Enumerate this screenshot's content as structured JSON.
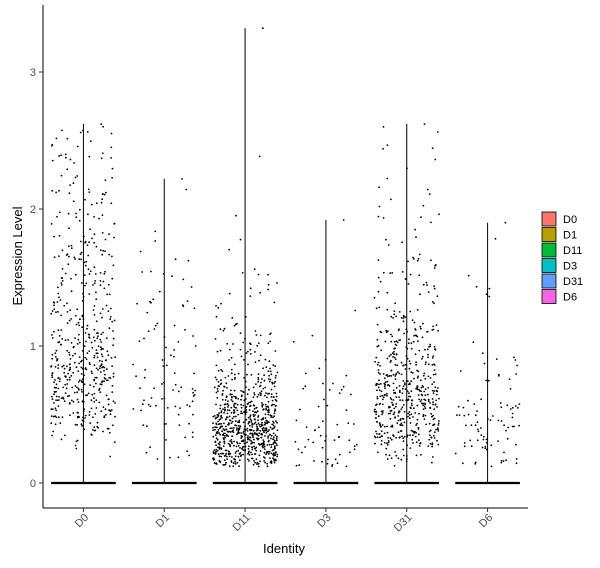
{
  "chart_data": {
    "type": "violin-jitter",
    "title": "",
    "xlabel": "Identity",
    "ylabel": "Expression Level",
    "ylim": [
      -0.18,
      3.38
    ],
    "yticks": [
      0,
      1,
      2,
      3
    ],
    "categories": [
      "D0",
      "D1",
      "D11",
      "D3",
      "D31",
      "D6"
    ],
    "legend": {
      "position": "right",
      "entries": [
        {
          "label": "D0",
          "color": "#F8766D"
        },
        {
          "label": "D1",
          "color": "#B79F00"
        },
        {
          "label": "D11",
          "color": "#00BA38"
        },
        {
          "label": "D3",
          "color": "#00BFC4"
        },
        {
          "label": "D31",
          "color": "#619CFF"
        },
        {
          "label": "D6",
          "color": "#F564E3"
        }
      ]
    },
    "series": [
      {
        "category": "D0",
        "max": 2.62,
        "nonzero_count": 520,
        "median_nonzero": 0.95
      },
      {
        "category": "D1",
        "max": 2.22,
        "nonzero_count": 95,
        "median_nonzero": 0.75
      },
      {
        "category": "D11",
        "max": 3.32,
        "nonzero_count": 780,
        "median_nonzero": 0.42
      },
      {
        "category": "D3",
        "max": 1.92,
        "nonzero_count": 60,
        "median_nonzero": 0.4
      },
      {
        "category": "D31",
        "max": 2.62,
        "nonzero_count": 560,
        "median_nonzero": 0.65
      },
      {
        "category": "D6",
        "max": 1.9,
        "nonzero_count": 90,
        "median_nonzero": 0.45
      }
    ],
    "grid": false
  }
}
